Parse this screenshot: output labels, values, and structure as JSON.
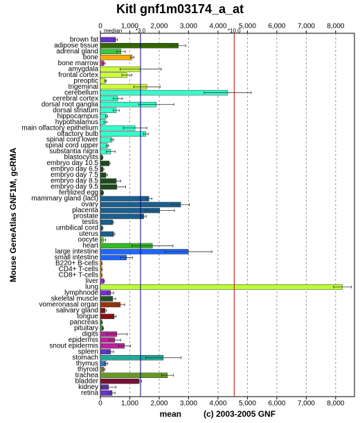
{
  "chart_data": {
    "type": "bar",
    "orientation": "horizontal",
    "title": "Kitl gnf1m03174_a_at",
    "y_label": "Mouse GeneAtlas GNF1M, gcRMA",
    "x_label": "mean",
    "credit": "(c) 2003-2005 GNF",
    "median_label": "median",
    "reference_lines": [
      {
        "label": "*3.0",
        "value": 1365,
        "color": "#000080"
      },
      {
        "label": "*10.0",
        "value": 4550,
        "color": "#cc0000"
      }
    ],
    "xlim": [
      0,
      8640
    ],
    "xticks": [
      0,
      {
        "value": 1000,
        "label": "1,000"
      },
      {
        "value": 2000,
        "label": "2,000"
      },
      {
        "value": 3000,
        "label": "3,000"
      },
      {
        "value": 4000,
        "label": "4,000"
      },
      {
        "value": 5000,
        "label": "5,000"
      },
      {
        "value": 6000,
        "label": "6,000"
      },
      {
        "value": 7000,
        "label": "7,000"
      },
      {
        "value": 8000,
        "label": "8,000"
      }
    ],
    "grid": true,
    "categories": [
      "brown fat",
      "adipose tissue",
      "adrenal gland",
      "bone",
      "bone marrow",
      "amygdala",
      "frontal cortex",
      "preoptic",
      "trigeminal",
      "cerebellum",
      "cerebral cortex",
      "dorsal root ganglia",
      "dorsal striatum",
      "hippocampus",
      "hypothalamus",
      "main olfactory epithelium",
      "olfactory bulb",
      "spinal cord lower",
      "spinal cord upper",
      "substantia nigra",
      "blastocysts",
      "embryo day 10.5",
      "embryo day 6.5",
      "embryo day 7.5",
      "embryo day 8.5",
      "embryo day 9.5",
      "fertilized egg",
      "mammary gland (lact)",
      "ovary",
      "placenta",
      "prostate",
      "testis",
      "umbilical cord",
      "uterus",
      "oocyte",
      "heart",
      "large intestine",
      "small intestine",
      "B220+ B-cells",
      "CD4+ T-cells",
      "CD8+ T-cells",
      "liver",
      "lung",
      "lymphnode",
      "skeletal muscle",
      "vomeronasal organ",
      "salivary gland",
      "tongue",
      "pancreas",
      "pituitary",
      "digits",
      "epidermis",
      "snout epidermis",
      "spleen",
      "stomach",
      "thymus",
      "thyroid",
      "trachea",
      "bladder",
      "kidney",
      "retina"
    ],
    "values": [
      520,
      2650,
      700,
      1080,
      120,
      1370,
      900,
      170,
      1580,
      4330,
      590,
      1900,
      540,
      210,
      170,
      1180,
      1550,
      400,
      240,
      350,
      70,
      300,
      90,
      190,
      540,
      560,
      90,
      1650,
      2730,
      2020,
      1480,
      420,
      70,
      450,
      100,
      1770,
      2990,
      890,
      50,
      50,
      50,
      120,
      8230,
      350,
      420,
      680,
      160,
      470,
      50,
      90,
      560,
      490,
      820,
      350,
      2140,
      190,
      120,
      2280,
      1320,
      280,
      400
    ],
    "errors": [
      60,
      250,
      150,
      60,
      40,
      700,
      170,
      30,
      450,
      800,
      150,
      600,
      100,
      40,
      50,
      400,
      80,
      50,
      40,
      150,
      20,
      30,
      30,
      50,
      150,
      300,
      20,
      100,
      300,
      500,
      80,
      30,
      20,
      40,
      80,
      700,
      800,
      200,
      10,
      10,
      10,
      20,
      300,
      100,
      100,
      150,
      40,
      60,
      20,
      20,
      350,
      200,
      200,
      100,
      600,
      60,
      30,
      200,
      80,
      250,
      100
    ],
    "colors": [
      "#6633cc",
      "#336600",
      "#33cc33",
      "#ffaa00",
      "#cc3399",
      "#ccff33",
      "#ccff33",
      "#ccff33",
      "#ccff33",
      "#33ffcc",
      "#33ffcc",
      "#33ffcc",
      "#33ffcc",
      "#33ffcc",
      "#33ffcc",
      "#33ffcc",
      "#33ffcc",
      "#33ffcc",
      "#33ffcc",
      "#33ffcc",
      "#1a4d1a",
      "#1a4d1a",
      "#1a4d1a",
      "#1a4d1a",
      "#1a4d1a",
      "#1a4d1a",
      "#1a4d1a",
      "#1a5f8f",
      "#1a5f8f",
      "#1a5f8f",
      "#1a5f8f",
      "#1a5f8f",
      "#1a5f8f",
      "#1a5f8f",
      "#66dd33",
      "#33bb22",
      "#1e66ff",
      "#1e66ff",
      "#ff9900",
      "#ff9900",
      "#ff9900",
      "#9933cc",
      "#bbff33",
      "#7733cc",
      "#225522",
      "#993311",
      "#881111",
      "#881111",
      "#339933",
      "#339933",
      "#bb2299",
      "#bb2299",
      "#bb2299",
      "#6633cc",
      "#22aa99",
      "#3377cc",
      "#888833",
      "#669922",
      "#771133",
      "#6633aa",
      "#6633cc"
    ]
  }
}
